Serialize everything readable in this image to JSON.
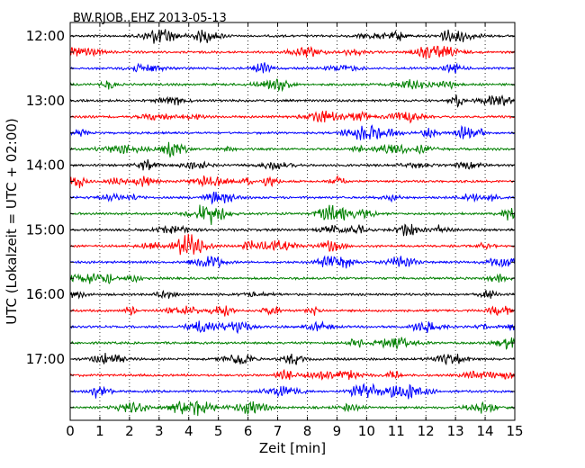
{
  "chart_data": {
    "type": "line",
    "title": "BW.RJOB..EHZ 2013-05-13",
    "xlabel": "Zeit  [min]",
    "ylabel": "UTC (Lokalzeit = UTC + 02:00)",
    "xlim": [
      0,
      15
    ],
    "x_ticks": [
      "0",
      "1",
      "2",
      "3",
      "4",
      "5",
      "6",
      "7",
      "8",
      "9",
      "10",
      "11",
      "12",
      "13",
      "14",
      "15"
    ],
    "y_ticks": [
      "12:00",
      "13:00",
      "14:00",
      "15:00",
      "16:00",
      "17:00"
    ],
    "grid": "vertical dotted",
    "trace_interval_min": 15,
    "trace_colors": [
      "#000000",
      "#ff0000",
      "#0000ff",
      "#008000"
    ],
    "trace_start_times": [
      "12:00",
      "12:15",
      "12:30",
      "12:45",
      "13:00",
      "13:15",
      "13:30",
      "13:45",
      "14:00",
      "14:15",
      "14:30",
      "14:45",
      "15:00",
      "15:15",
      "15:30",
      "15:45",
      "16:00",
      "16:15",
      "16:30",
      "16:45",
      "17:00",
      "17:15",
      "17:30",
      "17:45"
    ]
  }
}
